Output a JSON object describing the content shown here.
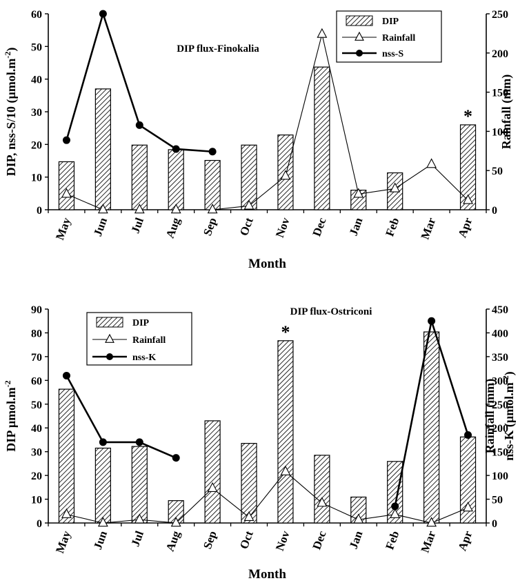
{
  "months": [
    "May",
    "Jun",
    "Jul",
    "Aug",
    "Sep",
    "Oct",
    "Nov",
    "Dec",
    "Jan",
    "Feb",
    "Mar",
    "Apr"
  ],
  "chart_data": [
    {
      "type": "bar",
      "title": "DIP flux-Finokalia",
      "xlabel": "Month",
      "ylabel": "DIP, nss-S/10 (µmol.m",
      "ylabel_sup": "-2",
      "ylabel_tail": ")",
      "y2label": "Rainfall (mm)",
      "categories": [
        "May",
        "Jun",
        "Jul",
        "Aug",
        "Sep",
        "Oct",
        "Nov",
        "Dec",
        "Jan",
        "Feb",
        "Mar",
        "Apr"
      ],
      "ylim": [
        0,
        60
      ],
      "yticks": [
        "0",
        "10",
        "20",
        "30",
        "40",
        "50",
        "60"
      ],
      "y2lim": [
        0,
        250
      ],
      "y2ticks": [
        "0",
        "50",
        "100",
        "150",
        "200",
        "250"
      ],
      "grid": false,
      "legend_position": "top-right",
      "annotations": [
        {
          "text": "*",
          "category": "Apr"
        }
      ],
      "series": [
        {
          "name": "DIP",
          "kind": "bar",
          "axis": "left",
          "values": [
            14.7,
            37,
            19.8,
            18.4,
            15.1,
            19.8,
            22.9,
            43.7,
            6.0,
            11.3,
            null,
            26.0
          ]
        },
        {
          "name": "Rainfall",
          "kind": "line-triangle",
          "axis": "right",
          "values": [
            20,
            0,
            0,
            0,
            0,
            5,
            43,
            224,
            20,
            27,
            58,
            12
          ]
        },
        {
          "name": "nss-S",
          "kind": "line-circle",
          "axis": "left",
          "values": [
            21.3,
            60,
            25.9,
            18.6,
            17.8,
            null,
            null,
            null,
            null,
            null,
            null,
            null
          ]
        }
      ]
    },
    {
      "type": "bar",
      "title": "DIP flux-Ostriconi",
      "xlabel": "Month",
      "ylabel": "DIP µmol.m",
      "ylabel_sup": "-2",
      "ylabel_tail": "",
      "y2label": "Rainfall (mm)",
      "y2label_b": "nss-K (µmol.m",
      "y2label_b_sup": "-2",
      "y2label_b_tail": ")",
      "categories": [
        "May",
        "Jun",
        "Jul",
        "Aug",
        "Sep",
        "Oct",
        "Nov",
        "Dec",
        "Jan",
        "Feb",
        "Mar",
        "Apr"
      ],
      "ylim": [
        0,
        90
      ],
      "yticks": [
        "0",
        "10",
        "20",
        "30",
        "40",
        "50",
        "60",
        "70",
        "80",
        "90"
      ],
      "y2lim": [
        0,
        450
      ],
      "y2ticks": [
        "0",
        "50",
        "100",
        "150",
        "200",
        "250",
        "300",
        "350",
        "400",
        "450"
      ],
      "grid": false,
      "legend_position": "top-left",
      "annotations": [
        {
          "text": "*",
          "category": "Nov"
        }
      ],
      "series": [
        {
          "name": "DIP",
          "kind": "bar",
          "axis": "left",
          "values": [
            56.3,
            31.5,
            32.2,
            9.4,
            43.0,
            33.5,
            76.7,
            28.5,
            10.9,
            25.9,
            80.4,
            36.2
          ]
        },
        {
          "name": "Rainfall",
          "kind": "line-triangle",
          "axis": "right",
          "values": [
            18,
            0,
            7,
            0,
            73,
            12,
            108,
            42,
            7,
            18,
            0,
            32
          ]
        },
        {
          "name": "nss-K",
          "kind": "line-circle",
          "axis": "right",
          "values": [
            310,
            170,
            170,
            137,
            null,
            null,
            null,
            null,
            null,
            35,
            425,
            185
          ]
        }
      ]
    }
  ]
}
